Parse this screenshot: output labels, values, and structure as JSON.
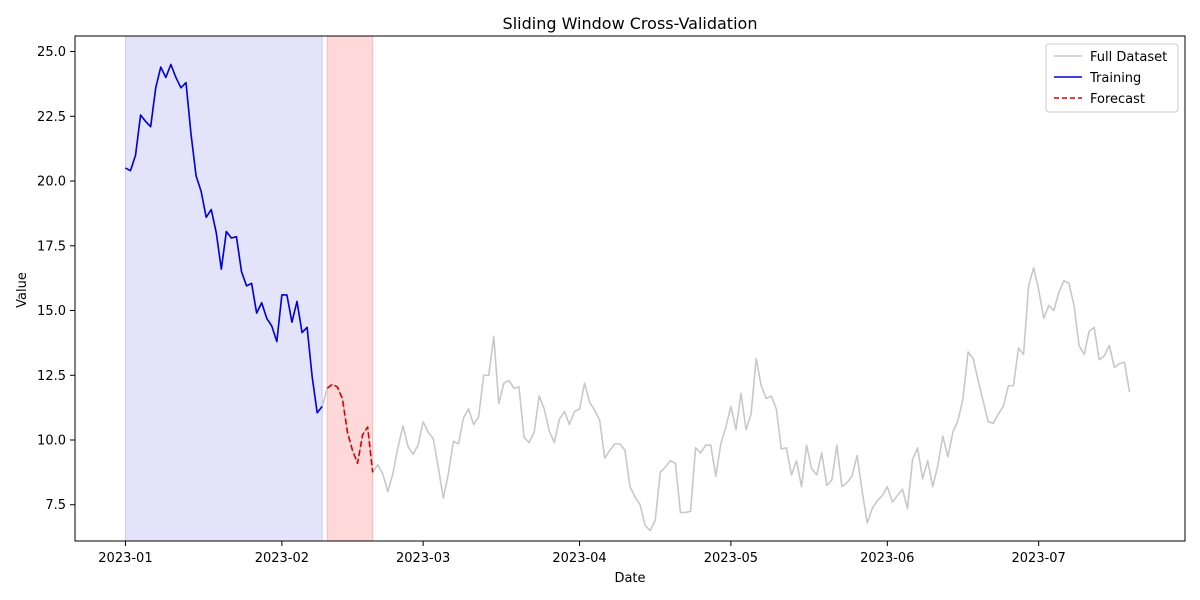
{
  "chart_data": {
    "type": "line",
    "title": "Sliding Window Cross-Validation",
    "xlabel": "Date",
    "ylabel": "Value",
    "ylim": [
      6.1,
      25.6
    ],
    "xlim": [
      "2022-12-22",
      "2023-07-30"
    ],
    "x_ticks": [
      "2023-01-01",
      "2023-02-01",
      "2023-03-01",
      "2023-04-01",
      "2023-05-01",
      "2023-06-01",
      "2023-07-01"
    ],
    "x_tick_labels": [
      "2023-01",
      "2023-02",
      "2023-03",
      "2023-04",
      "2023-05",
      "2023-06",
      "2023-07"
    ],
    "y_ticks": [
      7.5,
      10.0,
      12.5,
      15.0,
      17.5,
      20.0,
      22.5,
      25.0
    ],
    "y_tick_labels": [
      "7.5",
      "10.0",
      "12.5",
      "15.0",
      "17.5",
      "20.0",
      "22.5",
      "25.0"
    ],
    "grid": false,
    "legend_position": "top-right",
    "legend": [
      "Full Dataset",
      "Training",
      "Forecast"
    ],
    "windows": [
      {
        "label": "Training",
        "start": "2023-01-01",
        "end": "2023-02-09",
        "color": "#c7c7f5"
      },
      {
        "label": "Forecast",
        "start": "2023-02-10",
        "end": "2023-02-19",
        "color": "#ffb3b3"
      }
    ],
    "series": [
      {
        "name": "Full Dataset",
        "color": "#c8c8cc",
        "style": "solid",
        "start": "2023-01-01",
        "values": [
          20.5,
          20.4,
          21.0,
          22.55,
          22.3,
          22.1,
          23.6,
          24.4,
          24.0,
          24.5,
          24.0,
          23.6,
          23.8,
          21.8,
          20.2,
          19.6,
          18.6,
          18.9,
          18.0,
          16.6,
          18.05,
          17.8,
          17.85,
          16.5,
          15.95,
          16.05,
          14.9,
          15.3,
          14.7,
          14.4,
          13.8,
          15.6,
          15.6,
          14.55,
          15.35,
          14.15,
          14.35,
          12.45,
          11.05,
          11.3,
          12.0,
          12.15,
          12.05,
          11.6,
          10.3,
          9.6,
          9.1,
          10.2,
          10.5,
          8.75,
          9.05,
          8.7,
          8.0,
          8.7,
          9.7,
          10.55,
          9.75,
          9.45,
          9.8,
          10.7,
          10.3,
          10.05,
          8.95,
          7.75,
          8.7,
          9.95,
          9.85,
          10.85,
          11.2,
          10.6,
          10.9,
          12.5,
          12.5,
          14.0,
          11.4,
          12.2,
          12.3,
          12.0,
          12.05,
          10.1,
          9.9,
          10.3,
          11.7,
          11.2,
          10.35,
          9.9,
          10.8,
          11.1,
          10.6,
          11.1,
          11.2,
          12.2,
          11.45,
          11.15,
          10.75,
          9.3,
          9.6,
          9.85,
          9.85,
          9.6,
          8.2,
          7.8,
          7.5,
          6.7,
          6.5,
          6.9,
          8.75,
          8.95,
          9.2,
          9.1,
          7.2,
          7.2,
          7.25,
          9.7,
          9.5,
          9.8,
          9.8,
          8.6,
          9.85,
          10.5,
          11.3,
          10.4,
          11.8,
          10.4,
          11.0,
          13.15,
          12.1,
          11.6,
          11.7,
          11.2,
          9.65,
          9.7,
          8.65,
          9.2,
          8.2,
          9.8,
          8.9,
          8.65,
          9.5,
          8.25,
          8.45,
          9.8,
          8.2,
          8.35,
          8.6,
          9.4,
          8.05,
          6.8,
          7.35,
          7.65,
          7.85,
          8.2,
          7.6,
          7.85,
          8.1,
          7.35,
          9.25,
          9.7,
          8.5,
          9.2,
          8.2,
          9.0,
          10.15,
          9.35,
          10.3,
          10.75,
          11.6,
          13.4,
          13.15,
          12.3,
          11.5,
          10.7,
          10.65,
          11.0,
          11.3,
          12.1,
          12.1,
          13.55,
          13.3,
          15.95,
          16.65,
          15.8,
          14.7,
          15.2,
          15.0,
          15.7,
          16.15,
          16.05,
          15.2,
          13.65,
          13.3,
          14.2,
          14.35,
          13.1,
          13.25,
          13.65,
          12.8,
          12.95,
          13.0,
          11.85
        ]
      },
      {
        "name": "Training",
        "color": "#0000dd",
        "style": "solid",
        "start": "2023-01-01",
        "values": [
          20.5,
          20.4,
          21.0,
          22.55,
          22.3,
          22.1,
          23.6,
          24.4,
          24.0,
          24.5,
          24.0,
          23.6,
          23.8,
          21.8,
          20.2,
          19.6,
          18.6,
          18.9,
          18.0,
          16.6,
          18.05,
          17.8,
          17.85,
          16.5,
          15.95,
          16.05,
          14.9,
          15.3,
          14.7,
          14.4,
          13.8,
          15.6,
          15.6,
          14.55,
          15.35,
          14.15,
          14.35,
          12.45,
          11.05,
          11.3
        ]
      },
      {
        "name": "Forecast",
        "color": "#dd0000",
        "style": "dashed",
        "start": "2023-02-10",
        "values": [
          12.0,
          12.15,
          12.05,
          11.6,
          10.3,
          9.6,
          9.1,
          10.2,
          10.5,
          8.75
        ]
      }
    ]
  }
}
